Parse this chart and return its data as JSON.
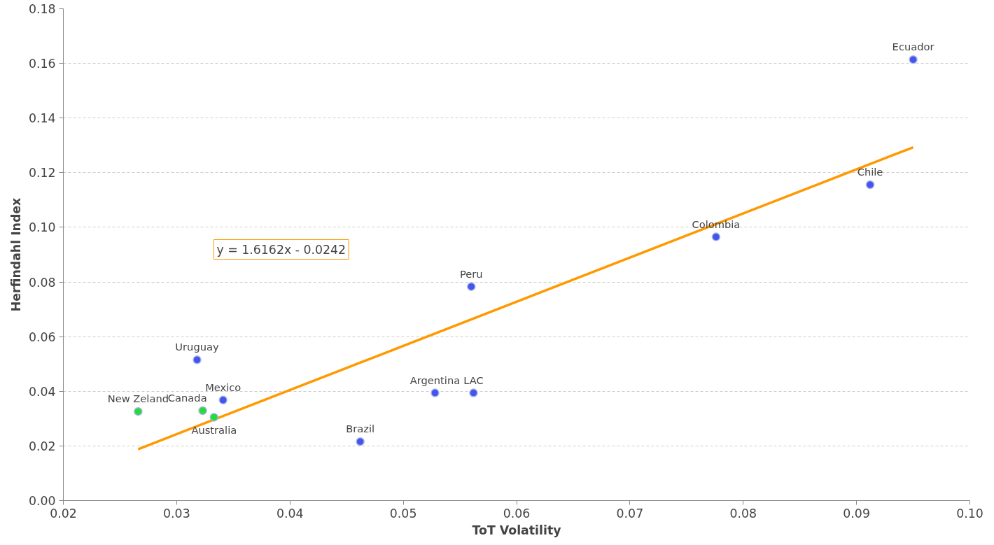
{
  "chart_data": {
    "type": "scatter",
    "xlabel": "ToT Volatility",
    "ylabel": "Herfindahl Index",
    "xlim": [
      0.02,
      0.1
    ],
    "ylim": [
      0,
      0.18
    ],
    "xticks": [
      {
        "value": 0.02,
        "label": "0.02"
      },
      {
        "value": 0.03,
        "label": "0.03"
      },
      {
        "value": 0.04,
        "label": "0.04"
      },
      {
        "value": 0.05,
        "label": "0.05"
      },
      {
        "value": 0.06,
        "label": "0.06"
      },
      {
        "value": 0.07,
        "label": "0.07"
      },
      {
        "value": 0.08,
        "label": "0.08"
      },
      {
        "value": 0.09,
        "label": "0.09"
      },
      {
        "value": 0.1,
        "label": "0.10"
      }
    ],
    "yticks": [
      {
        "value": 0,
        "label": "0.00"
      },
      {
        "value": 0.02,
        "label": "0.02"
      },
      {
        "value": 0.04,
        "label": "0.04"
      },
      {
        "value": 0.06,
        "label": "0.06"
      },
      {
        "value": 0.08,
        "label": "0.08"
      },
      {
        "value": 0.1,
        "label": "0.10"
      },
      {
        "value": 0.12,
        "label": "0.12"
      },
      {
        "value": 0.14,
        "label": "0.14"
      },
      {
        "value": 0.16,
        "label": "0.16"
      },
      {
        "value": 0.18,
        "label": "0.18"
      }
    ],
    "grid": "y",
    "marker": "circle",
    "series": [
      {
        "color": "#22dd33",
        "x": [
          0.0266,
          0.0323,
          0.0333
        ],
        "values": [
          0.0326,
          0.0329,
          0.0305
        ]
      },
      {
        "color": "#4455ee",
        "x": [
          0.0318,
          0.0341,
          0.0462,
          0.0528,
          0.0562,
          0.056,
          0.0776,
          0.0912,
          0.095
        ],
        "values": [
          0.0515,
          0.0368,
          0.0216,
          0.0394,
          0.0394,
          0.0783,
          0.0965,
          0.1156,
          0.1614
        ]
      },
      {
        "type": "line",
        "marker": "none",
        "color": "#ff9900",
        "x": [
          0.0266,
          0.095
        ],
        "values": [
          0.0188,
          0.1293
        ]
      }
    ],
    "annotations": [
      "y = 1.6162x - 0.0242",
      {
        "text": "New Zeland",
        "x": 0.0266,
        "y": 0.0326
      },
      {
        "text": "Canada",
        "x": 0.0323,
        "y": 0.0329
      },
      {
        "text": "Australia",
        "x": 0.0333,
        "y": 0.0305
      },
      {
        "text": "Uruguay",
        "x": 0.0318,
        "y": 0.0515
      },
      {
        "text": "Mexico",
        "x": 0.0341,
        "y": 0.0368
      },
      {
        "text": "Brazil",
        "x": 0.0462,
        "y": 0.0216
      },
      {
        "text": "Argentina",
        "x": 0.0528,
        "y": 0.0394
      },
      {
        "text": "LAC",
        "x": 0.0562,
        "y": 0.0394
      },
      {
        "text": "Peru",
        "x": 0.056,
        "y": 0.0783
      },
      {
        "text": "Colombia",
        "x": 0.0776,
        "y": 0.0965
      },
      {
        "text": "Chile",
        "x": 0.0912,
        "y": 0.1156
      },
      {
        "text": "Ecuador",
        "x": 0.095,
        "y": 0.1614
      }
    ]
  }
}
